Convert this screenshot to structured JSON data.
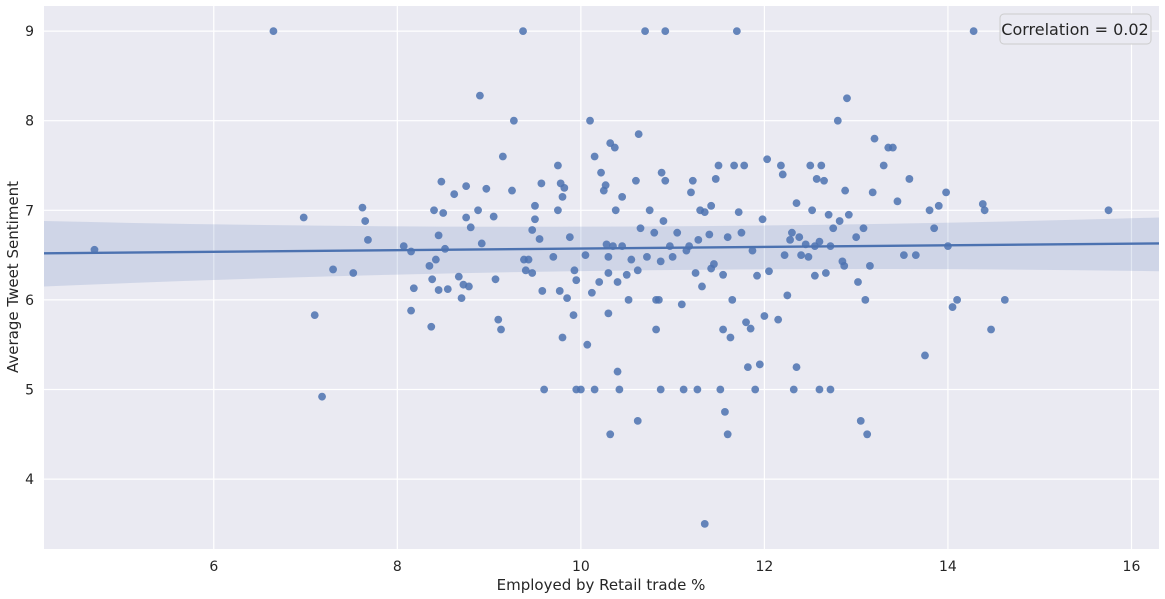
{
  "chart_data": {
    "type": "scatter",
    "xlabel": "Employed by Retail trade %",
    "ylabel": "Average Tweet Sentiment",
    "xlim": [
      4.15,
      16.3
    ],
    "ylim": [
      3.22,
      9.28
    ],
    "xticks": [
      6,
      8,
      10,
      12,
      14,
      16
    ],
    "yticks": [
      4,
      5,
      6,
      7,
      8,
      9
    ],
    "grid": true,
    "legend": {
      "text": "Correlation = 0.02",
      "placement": "top-right"
    },
    "regression": {
      "x": [
        4.15,
        16.3
      ],
      "y": [
        6.52,
        6.63
      ],
      "ci_lower": [
        6.15,
        6.32
      ],
      "ci_upper": [
        6.88,
        6.92
      ]
    },
    "colors": {
      "background": "#eaeaf2",
      "grid": "#ffffff",
      "point": "#4c72b0",
      "line": "#4c72b0",
      "band": "#4c72b0"
    },
    "points": [
      [
        4.7,
        6.56
      ],
      [
        6.65,
        9.0
      ],
      [
        6.98,
        6.92
      ],
      [
        7.1,
        5.83
      ],
      [
        7.18,
        4.92
      ],
      [
        7.3,
        6.34
      ],
      [
        7.52,
        6.3
      ],
      [
        7.62,
        7.03
      ],
      [
        7.65,
        6.88
      ],
      [
        7.68,
        6.67
      ],
      [
        8.07,
        6.6
      ],
      [
        8.15,
        6.54
      ],
      [
        8.15,
        5.88
      ],
      [
        8.18,
        6.13
      ],
      [
        8.35,
        6.38
      ],
      [
        8.38,
        6.23
      ],
      [
        8.37,
        5.7
      ],
      [
        8.4,
        7.0
      ],
      [
        8.42,
        6.45
      ],
      [
        8.45,
        6.72
      ],
      [
        8.45,
        6.11
      ],
      [
        8.48,
        7.32
      ],
      [
        8.5,
        6.97
      ],
      [
        8.52,
        6.57
      ],
      [
        8.55,
        6.12
      ],
      [
        8.62,
        7.18
      ],
      [
        8.67,
        6.26
      ],
      [
        8.7,
        6.02
      ],
      [
        8.72,
        6.17
      ],
      [
        8.75,
        6.92
      ],
      [
        8.75,
        7.27
      ],
      [
        8.78,
        6.15
      ],
      [
        8.8,
        6.81
      ],
      [
        8.88,
        7.0
      ],
      [
        8.9,
        8.28
      ],
      [
        8.92,
        6.63
      ],
      [
        8.97,
        7.24
      ],
      [
        9.05,
        6.93
      ],
      [
        9.07,
        6.23
      ],
      [
        9.1,
        5.78
      ],
      [
        9.13,
        5.67
      ],
      [
        9.15,
        7.6
      ],
      [
        9.25,
        7.22
      ],
      [
        9.27,
        8.0
      ],
      [
        9.37,
        9.0
      ],
      [
        9.38,
        6.45
      ],
      [
        9.4,
        6.33
      ],
      [
        9.47,
        6.3
      ],
      [
        9.47,
        6.78
      ],
      [
        9.5,
        6.9
      ],
      [
        9.5,
        7.05
      ],
      [
        9.55,
        6.68
      ],
      [
        9.57,
        7.3
      ],
      [
        9.58,
        6.1
      ],
      [
        9.6,
        5.0
      ],
      [
        9.7,
        6.48
      ],
      [
        9.75,
        7.5
      ],
      [
        9.75,
        7.0
      ],
      [
        9.77,
        6.1
      ],
      [
        9.78,
        7.3
      ],
      [
        9.8,
        7.15
      ],
      [
        9.8,
        5.58
      ],
      [
        9.82,
        7.25
      ],
      [
        9.85,
        6.02
      ],
      [
        9.88,
        6.7
      ],
      [
        9.92,
        5.83
      ],
      [
        9.93,
        6.33
      ],
      [
        9.95,
        6.22
      ],
      [
        9.95,
        5.0
      ],
      [
        10.0,
        5.0
      ],
      [
        10.05,
        6.5
      ],
      [
        10.07,
        5.5
      ],
      [
        10.1,
        8.0
      ],
      [
        10.12,
        6.08
      ],
      [
        10.15,
        5.0
      ],
      [
        10.15,
        7.6
      ],
      [
        10.2,
        6.2
      ],
      [
        10.25,
        7.22
      ],
      [
        10.27,
        7.28
      ],
      [
        10.28,
        6.62
      ],
      [
        10.3,
        6.3
      ],
      [
        10.3,
        6.48
      ],
      [
        10.3,
        5.85
      ],
      [
        10.32,
        7.75
      ],
      [
        10.32,
        4.5
      ],
      [
        10.35,
        6.6
      ],
      [
        10.37,
        7.7
      ],
      [
        10.38,
        7.0
      ],
      [
        10.4,
        6.2
      ],
      [
        10.4,
        5.2
      ],
      [
        10.42,
        5.0
      ],
      [
        10.45,
        7.15
      ],
      [
        10.45,
        6.6
      ],
      [
        10.5,
        6.28
      ],
      [
        10.52,
        6.0
      ],
      [
        10.55,
        6.45
      ],
      [
        10.6,
        7.33
      ],
      [
        10.62,
        6.33
      ],
      [
        10.62,
        4.65
      ],
      [
        10.63,
        7.85
      ],
      [
        10.65,
        6.8
      ],
      [
        10.7,
        9.0
      ],
      [
        10.72,
        6.48
      ],
      [
        10.75,
        7.0
      ],
      [
        10.8,
        6.75
      ],
      [
        10.82,
        6.0
      ],
      [
        10.82,
        5.67
      ],
      [
        10.85,
        6.0
      ],
      [
        10.87,
        6.43
      ],
      [
        10.87,
        5.0
      ],
      [
        10.88,
        7.42
      ],
      [
        10.9,
        6.88
      ],
      [
        10.92,
        9.0
      ],
      [
        10.92,
        7.33
      ],
      [
        10.97,
        6.6
      ],
      [
        11.0,
        6.48
      ],
      [
        11.05,
        6.75
      ],
      [
        11.1,
        5.95
      ],
      [
        11.12,
        5.0
      ],
      [
        11.15,
        6.55
      ],
      [
        11.18,
        6.6
      ],
      [
        11.22,
        7.33
      ],
      [
        11.25,
        6.3
      ],
      [
        11.27,
        5.0
      ],
      [
        11.28,
        6.67
      ],
      [
        11.3,
        7.0
      ],
      [
        11.32,
        6.15
      ],
      [
        11.35,
        3.5
      ],
      [
        11.35,
        6.98
      ],
      [
        11.4,
        6.73
      ],
      [
        11.42,
        6.35
      ],
      [
        11.45,
        6.4
      ],
      [
        11.47,
        7.35
      ],
      [
        11.5,
        7.5
      ],
      [
        11.52,
        5.0
      ],
      [
        11.55,
        5.67
      ],
      [
        11.55,
        6.28
      ],
      [
        11.57,
        4.75
      ],
      [
        11.6,
        4.5
      ],
      [
        11.6,
        6.7
      ],
      [
        11.63,
        5.58
      ],
      [
        11.65,
        6.0
      ],
      [
        11.67,
        7.5
      ],
      [
        11.7,
        9.0
      ],
      [
        11.72,
        6.98
      ],
      [
        11.75,
        6.75
      ],
      [
        11.78,
        7.5
      ],
      [
        11.8,
        5.75
      ],
      [
        11.82,
        5.25
      ],
      [
        11.85,
        5.68
      ],
      [
        11.87,
        6.55
      ],
      [
        11.9,
        5.0
      ],
      [
        11.92,
        6.27
      ],
      [
        11.95,
        5.28
      ],
      [
        11.98,
        6.9
      ],
      [
        12.0,
        5.82
      ],
      [
        12.03,
        7.57
      ],
      [
        12.05,
        6.32
      ],
      [
        12.15,
        5.78
      ],
      [
        12.18,
        7.5
      ],
      [
        12.2,
        7.4
      ],
      [
        12.22,
        6.5
      ],
      [
        12.25,
        6.05
      ],
      [
        12.28,
        6.67
      ],
      [
        12.3,
        6.75
      ],
      [
        12.32,
        5.0
      ],
      [
        12.35,
        5.25
      ],
      [
        12.38,
        6.7
      ],
      [
        12.4,
        6.5
      ],
      [
        12.45,
        6.62
      ],
      [
        12.48,
        6.48
      ],
      [
        12.5,
        7.5
      ],
      [
        12.52,
        7.0
      ],
      [
        12.55,
        6.27
      ],
      [
        12.55,
        6.6
      ],
      [
        12.57,
        7.35
      ],
      [
        12.6,
        5.0
      ],
      [
        12.6,
        6.65
      ],
      [
        12.62,
        7.5
      ],
      [
        12.65,
        7.33
      ],
      [
        12.67,
        6.3
      ],
      [
        12.7,
        6.95
      ],
      [
        12.72,
        5.0
      ],
      [
        12.72,
        6.6
      ],
      [
        12.75,
        6.8
      ],
      [
        12.8,
        8.0
      ],
      [
        12.82,
        6.88
      ],
      [
        12.85,
        6.43
      ],
      [
        12.87,
        6.38
      ],
      [
        12.9,
        8.25
      ],
      [
        12.92,
        6.95
      ],
      [
        13.0,
        6.7
      ],
      [
        13.02,
        6.2
      ],
      [
        13.05,
        4.65
      ],
      [
        13.08,
        6.8
      ],
      [
        13.1,
        6.0
      ],
      [
        13.12,
        4.5
      ],
      [
        13.15,
        6.38
      ],
      [
        13.18,
        7.2
      ],
      [
        13.2,
        7.8
      ],
      [
        13.3,
        7.5
      ],
      [
        13.35,
        7.7
      ],
      [
        13.4,
        7.7
      ],
      [
        13.45,
        7.1
      ],
      [
        13.52,
        6.5
      ],
      [
        13.58,
        7.35
      ],
      [
        13.65,
        6.5
      ],
      [
        13.75,
        5.38
      ],
      [
        13.8,
        7.0
      ],
      [
        13.85,
        6.8
      ],
      [
        13.9,
        7.05
      ],
      [
        13.98,
        7.2
      ],
      [
        14.0,
        6.6
      ],
      [
        14.05,
        5.92
      ],
      [
        14.1,
        6.0
      ],
      [
        14.28,
        9.0
      ],
      [
        14.38,
        7.07
      ],
      [
        14.4,
        7.0
      ],
      [
        14.47,
        5.67
      ],
      [
        14.62,
        6.0
      ],
      [
        15.75,
        7.0
      ],
      [
        12.88,
        7.22
      ],
      [
        11.2,
        7.2
      ],
      [
        10.22,
        7.42
      ],
      [
        9.43,
        6.45
      ],
      [
        11.42,
        7.05
      ],
      [
        12.35,
        7.08
      ]
    ]
  }
}
